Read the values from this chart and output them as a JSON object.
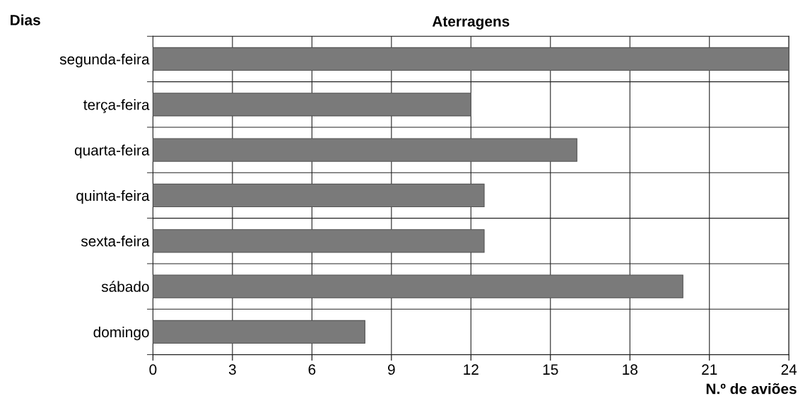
{
  "chart_data": {
    "type": "bar",
    "orientation": "horizontal",
    "title": "Aterragens",
    "ylabel": "Dias",
    "xlabel": "N.º de aviões",
    "categories": [
      "segunda-feira",
      "terça-feira",
      "quarta-feira",
      "quinta-feira",
      "sexta-feira",
      "sábado",
      "domingo"
    ],
    "values": [
      24,
      12,
      16,
      12.5,
      12.5,
      20,
      8
    ],
    "color": "#7a7a7a",
    "xlim": [
      0,
      24
    ],
    "xticks": [
      0,
      3,
      6,
      9,
      12,
      15,
      18,
      21,
      24
    ],
    "grid": true
  }
}
